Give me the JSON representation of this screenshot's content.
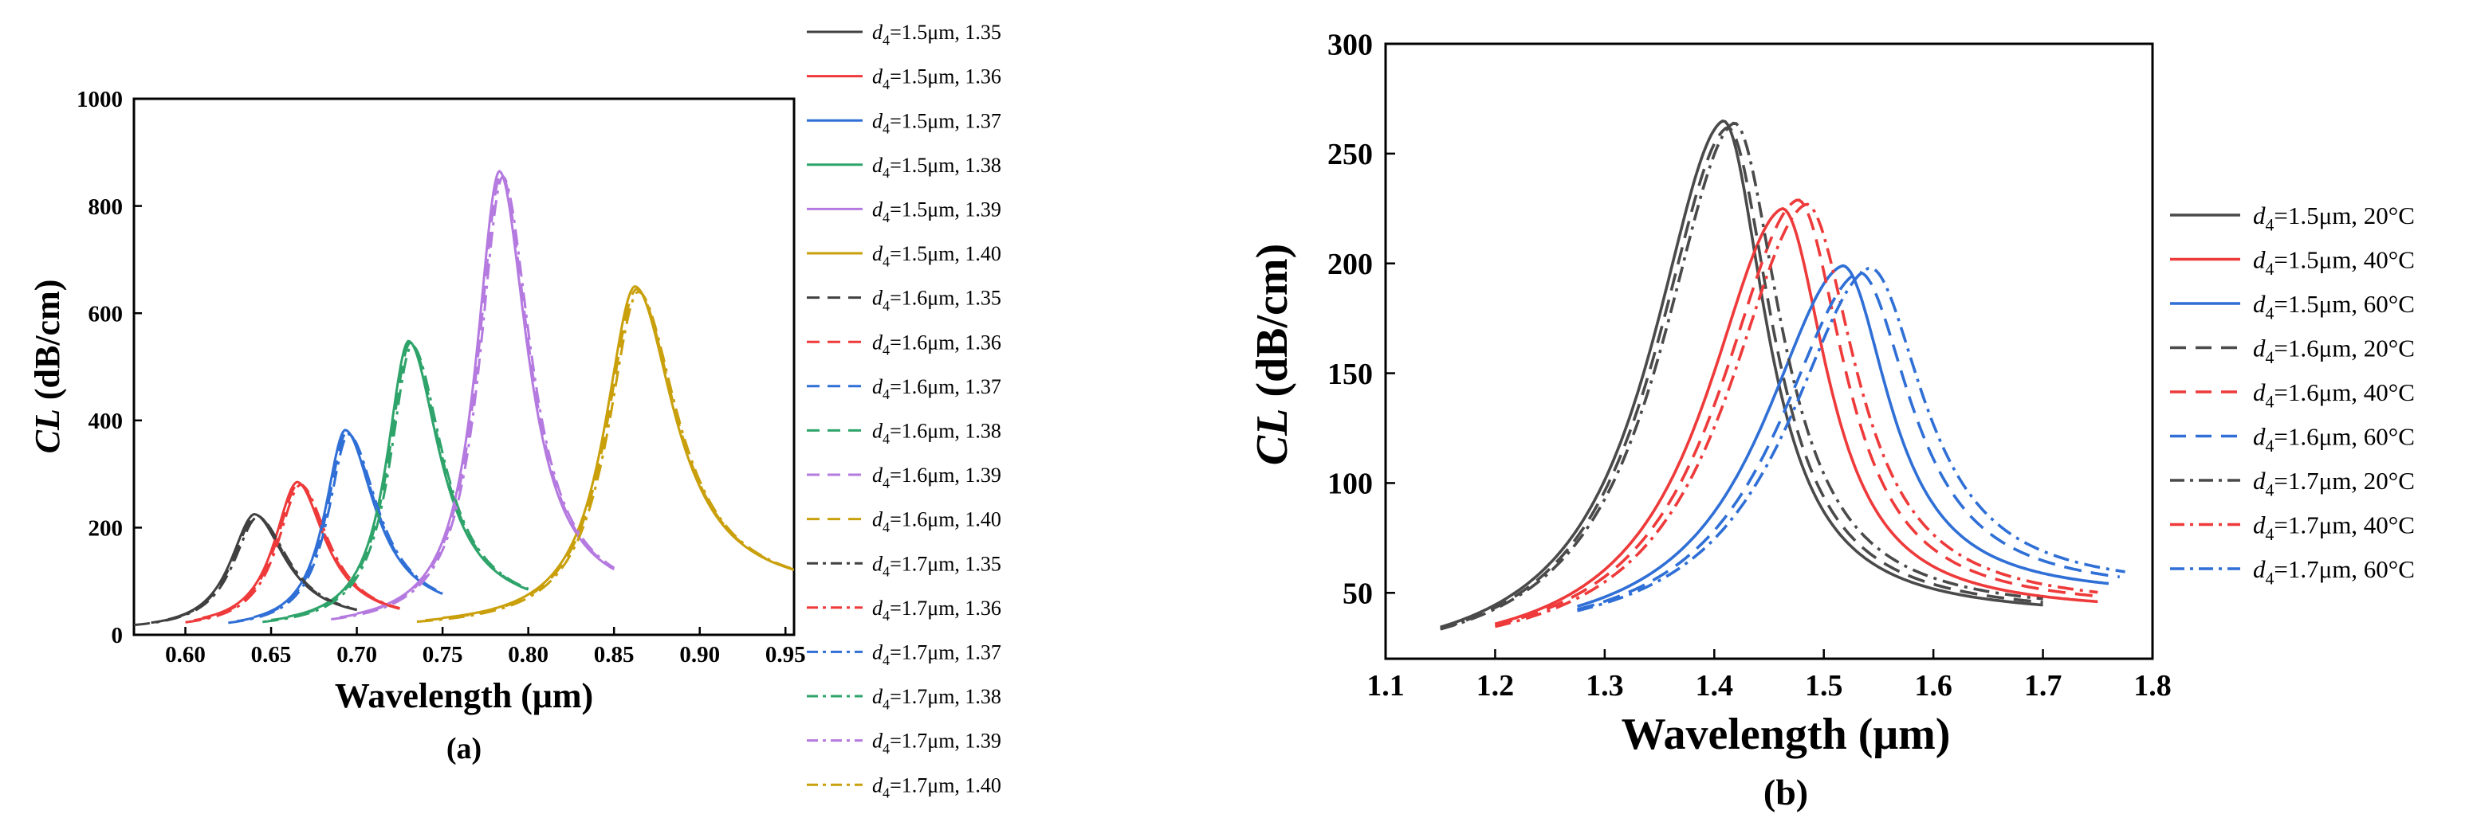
{
  "chart_data": [
    {
      "id": "a",
      "type": "line",
      "subplot_label": "(a)",
      "xlabel": "Wavelength (μm)",
      "ylabel_italic": "CL",
      "ylabel_rest": " (dB/cm)",
      "xlim": [
        0.57,
        0.955
      ],
      "ylim": [
        0,
        1000
      ],
      "xticks": [
        "0.60",
        "0.65",
        "0.70",
        "0.75",
        "0.80",
        "0.85",
        "0.90",
        "0.95"
      ],
      "xtick_values": [
        0.6,
        0.65,
        0.7,
        0.75,
        0.8,
        0.85,
        0.9,
        0.95
      ],
      "yticks": [
        "0",
        "200",
        "400",
        "600",
        "800",
        "1000"
      ],
      "ytick_values": [
        0,
        200,
        400,
        600,
        800,
        1000
      ],
      "legend_position": "outside-right",
      "series": [
        {
          "name": "d4=1.5μm, 1.35",
          "sub": "4",
          "text": "=1.5μm, 1.35",
          "color": "#404040",
          "dash": "solid",
          "peak_x": 0.64,
          "peak_y": 225,
          "x_start": 0.59,
          "x_end": 0.7,
          "y_start": 15,
          "y_end": 32,
          "lw": 0.018,
          "rw": 0.022
        },
        {
          "name": "d4=1.5μm, 1.36",
          "sub": "4",
          "text": "=1.5μm, 1.36",
          "color": "#ee3a3a",
          "dash": "solid",
          "peak_x": 0.665,
          "peak_y": 285,
          "x_start": 0.61,
          "x_end": 0.725,
          "y_start": 20,
          "y_end": 32,
          "lw": 0.017,
          "rw": 0.02
        },
        {
          "name": "d4=1.5μm, 1.37",
          "sub": "4",
          "text": "=1.5μm, 1.37",
          "color": "#2f6fd6",
          "dash": "solid",
          "peak_x": 0.693,
          "peak_y": 382,
          "x_start": 0.64,
          "x_end": 0.75,
          "y_start": 18,
          "y_end": 50,
          "lw": 0.015,
          "rw": 0.021
        },
        {
          "name": "d4=1.5μm, 1.38",
          "sub": "4",
          "text": "=1.5μm, 1.38",
          "color": "#2ea36a",
          "dash": "solid",
          "peak_x": 0.73,
          "peak_y": 548,
          "x_start": 0.66,
          "x_end": 0.8,
          "y_start": 20,
          "y_end": 55,
          "lw": 0.016,
          "rw": 0.022
        },
        {
          "name": "d4=1.5μm, 1.39",
          "sub": "4",
          "text": "=1.5μm, 1.39",
          "color": "#b57ae0",
          "dash": "solid",
          "peak_x": 0.783,
          "peak_y": 865,
          "x_start": 0.7,
          "x_end": 0.85,
          "y_start": 20,
          "y_end": 80,
          "lw": 0.017,
          "rw": 0.02
        },
        {
          "name": "d4=1.5μm, 1.40",
          "sub": "4",
          "text": "=1.5μm, 1.40",
          "color": "#c9a00c",
          "dash": "solid",
          "peak_x": 0.862,
          "peak_y": 650,
          "x_start": 0.75,
          "x_end": 0.955,
          "y_start": 20,
          "y_end": 105,
          "lw": 0.022,
          "rw": 0.028
        },
        {
          "name": "d4=1.6μm, 1.35",
          "sub": "4",
          "text": "=1.6μm, 1.35",
          "color": "#404040",
          "dash": "dash",
          "peak_x": 0.641,
          "peak_y": 223,
          "x_start": 0.58,
          "x_end": 0.7,
          "y_start": 14,
          "y_end": 32,
          "lw": 0.018,
          "rw": 0.022
        },
        {
          "name": "d4=1.6μm, 1.36",
          "sub": "4",
          "text": "=1.6μm, 1.36",
          "color": "#ee3a3a",
          "dash": "dash",
          "peak_x": 0.666,
          "peak_y": 283,
          "x_start": 0.605,
          "x_end": 0.725,
          "y_start": 18,
          "y_end": 32,
          "lw": 0.017,
          "rw": 0.02
        },
        {
          "name": "d4=1.6μm, 1.37",
          "sub": "4",
          "text": "=1.6μm, 1.37",
          "color": "#2f6fd6",
          "dash": "dash",
          "peak_x": 0.694,
          "peak_y": 378,
          "x_start": 0.63,
          "x_end": 0.75,
          "y_start": 16,
          "y_end": 50,
          "lw": 0.015,
          "rw": 0.021
        },
        {
          "name": "d4=1.6μm, 1.38",
          "sub": "4",
          "text": "=1.6μm, 1.38",
          "color": "#2ea36a",
          "dash": "dash",
          "peak_x": 0.731,
          "peak_y": 545,
          "x_start": 0.65,
          "x_end": 0.8,
          "y_start": 18,
          "y_end": 55,
          "lw": 0.016,
          "rw": 0.022
        },
        {
          "name": "d4=1.6μm, 1.39",
          "sub": "4",
          "text": "=1.6μm, 1.39",
          "color": "#b57ae0",
          "dash": "dash",
          "peak_x": 0.784,
          "peak_y": 860,
          "x_start": 0.69,
          "x_end": 0.85,
          "y_start": 18,
          "y_end": 80,
          "lw": 0.017,
          "rw": 0.02
        },
        {
          "name": "d4=1.6μm, 1.40",
          "sub": "4",
          "text": "=1.6μm, 1.40",
          "color": "#c9a00c",
          "dash": "dash",
          "peak_x": 0.863,
          "peak_y": 645,
          "x_start": 0.74,
          "x_end": 0.955,
          "y_start": 18,
          "y_end": 105,
          "lw": 0.022,
          "rw": 0.028
        },
        {
          "name": "d4=1.7μm, 1.35",
          "sub": "4",
          "text": "=1.7μm, 1.35",
          "color": "#404040",
          "dash": "dashdot",
          "peak_x": 0.642,
          "peak_y": 220,
          "x_start": 0.57,
          "x_end": 0.7,
          "y_start": 13,
          "y_end": 32,
          "lw": 0.018,
          "rw": 0.022
        },
        {
          "name": "d4=1.7μm, 1.36",
          "sub": "4",
          "text": "=1.7μm, 1.36",
          "color": "#ee3a3a",
          "dash": "dashdot",
          "peak_x": 0.667,
          "peak_y": 280,
          "x_start": 0.6,
          "x_end": 0.725,
          "y_start": 16,
          "y_end": 32,
          "lw": 0.017,
          "rw": 0.02
        },
        {
          "name": "d4=1.7μm, 1.37",
          "sub": "4",
          "text": "=1.7μm, 1.37",
          "color": "#2f6fd6",
          "dash": "dashdot",
          "peak_x": 0.695,
          "peak_y": 374,
          "x_start": 0.625,
          "x_end": 0.75,
          "y_start": 15,
          "y_end": 50,
          "lw": 0.015,
          "rw": 0.021
        },
        {
          "name": "d4=1.7μm, 1.38",
          "sub": "4",
          "text": "=1.7μm, 1.38",
          "color": "#2ea36a",
          "dash": "dashdot",
          "peak_x": 0.732,
          "peak_y": 540,
          "x_start": 0.645,
          "x_end": 0.8,
          "y_start": 16,
          "y_end": 55,
          "lw": 0.016,
          "rw": 0.022
        },
        {
          "name": "d4=1.7μm, 1.39",
          "sub": "4",
          "text": "=1.7μm, 1.39",
          "color": "#b57ae0",
          "dash": "dashdot",
          "peak_x": 0.785,
          "peak_y": 855,
          "x_start": 0.685,
          "x_end": 0.85,
          "y_start": 16,
          "y_end": 80,
          "lw": 0.017,
          "rw": 0.02
        },
        {
          "name": "d4=1.7μm, 1.40",
          "sub": "4",
          "text": "=1.7μm, 1.40",
          "color": "#c9a00c",
          "dash": "dashdot",
          "peak_x": 0.864,
          "peak_y": 640,
          "x_start": 0.735,
          "x_end": 0.955,
          "y_start": 16,
          "y_end": 105,
          "lw": 0.022,
          "rw": 0.028
        }
      ]
    },
    {
      "id": "b",
      "type": "line",
      "subplot_label": "(b)",
      "xlabel": "Wavelength (μm)",
      "ylabel_italic": "CL",
      "ylabel_rest": " (dB/cm)",
      "xlim": [
        1.1,
        1.8
      ],
      "ylim": [
        20,
        300
      ],
      "xticks": [
        "1.1",
        "1.2",
        "1.3",
        "1.4",
        "1.5",
        "1.6",
        "1.7",
        "1.8"
      ],
      "xtick_values": [
        1.1,
        1.2,
        1.3,
        1.4,
        1.5,
        1.6,
        1.7,
        1.8
      ],
      "yticks": [
        "50",
        "100",
        "150",
        "200",
        "250",
        "300"
      ],
      "ytick_values": [
        50,
        100,
        150,
        200,
        250,
        300
      ],
      "legend_position": "outside-right",
      "series": [
        {
          "name": "d4=1.5μm, 20°C",
          "sub": "4",
          "text": "=1.5μm, 20°C",
          "color": "#4a4a4a",
          "dash": "solid",
          "peak_x": 1.408,
          "peak_y": 265,
          "x_start": 1.15,
          "x_end": 1.7,
          "y_start": 23,
          "y_end": 55,
          "lw": 0.085,
          "rw": 0.048
        },
        {
          "name": "d4=1.5μm, 40°C",
          "sub": "4",
          "text": "=1.5μm, 40°C",
          "color": "#ee3a3a",
          "dash": "solid",
          "peak_x": 1.462,
          "peak_y": 225,
          "x_start": 1.2,
          "x_end": 1.75,
          "y_start": 28,
          "y_end": 58,
          "lw": 0.09,
          "rw": 0.05
        },
        {
          "name": "d4=1.5μm, 60°C",
          "sub": "4",
          "text": "=1.5μm, 60°C",
          "color": "#2f6fd6",
          "dash": "solid",
          "peak_x": 1.517,
          "peak_y": 199,
          "x_start": 1.275,
          "x_end": 1.76,
          "y_start": 38,
          "y_end": 68,
          "lw": 0.095,
          "rw": 0.052
        },
        {
          "name": "d4=1.6μm, 20°C",
          "sub": "4",
          "text": "=1.6μm, 20°C",
          "color": "#4a4a4a",
          "dash": "dash",
          "peak_x": 1.412,
          "peak_y": 262,
          "x_start": 1.15,
          "x_end": 1.7,
          "y_start": 23,
          "y_end": 56,
          "lw": 0.085,
          "rw": 0.05
        },
        {
          "name": "d4=1.6μm, 40°C",
          "sub": "4",
          "text": "=1.6μm, 40°C",
          "color": "#ee3a3a",
          "dash": "dash",
          "peak_x": 1.476,
          "peak_y": 229,
          "x_start": 1.2,
          "x_end": 1.75,
          "y_start": 28,
          "y_end": 60,
          "lw": 0.092,
          "rw": 0.052
        },
        {
          "name": "d4=1.6μm, 60°C",
          "sub": "4",
          "text": "=1.6μm, 60°C",
          "color": "#2f6fd6",
          "dash": "dash",
          "peak_x": 1.532,
          "peak_y": 196,
          "x_start": 1.275,
          "x_end": 1.77,
          "y_start": 38,
          "y_end": 70,
          "lw": 0.097,
          "rw": 0.058
        },
        {
          "name": "d4=1.7μm, 20°C",
          "sub": "4",
          "text": "=1.7μm, 20°C",
          "color": "#4a4a4a",
          "dash": "dashdot",
          "peak_x": 1.418,
          "peak_y": 264,
          "x_start": 1.15,
          "x_end": 1.7,
          "y_start": 23,
          "y_end": 57,
          "lw": 0.086,
          "rw": 0.052
        },
        {
          "name": "d4=1.7μm, 40°C",
          "sub": "4",
          "text": "=1.7μm, 40°C",
          "color": "#ee3a3a",
          "dash": "dashdot",
          "peak_x": 1.484,
          "peak_y": 227,
          "x_start": 1.2,
          "x_end": 1.75,
          "y_start": 28,
          "y_end": 61,
          "lw": 0.093,
          "rw": 0.055
        },
        {
          "name": "d4=1.7μm, 60°C",
          "sub": "4",
          "text": "=1.7μm, 60°C",
          "color": "#2f6fd6",
          "dash": "dashdot",
          "peak_x": 1.542,
          "peak_y": 198,
          "x_start": 1.275,
          "x_end": 1.775,
          "y_start": 38,
          "y_end": 72,
          "lw": 0.098,
          "rw": 0.06
        }
      ]
    }
  ]
}
